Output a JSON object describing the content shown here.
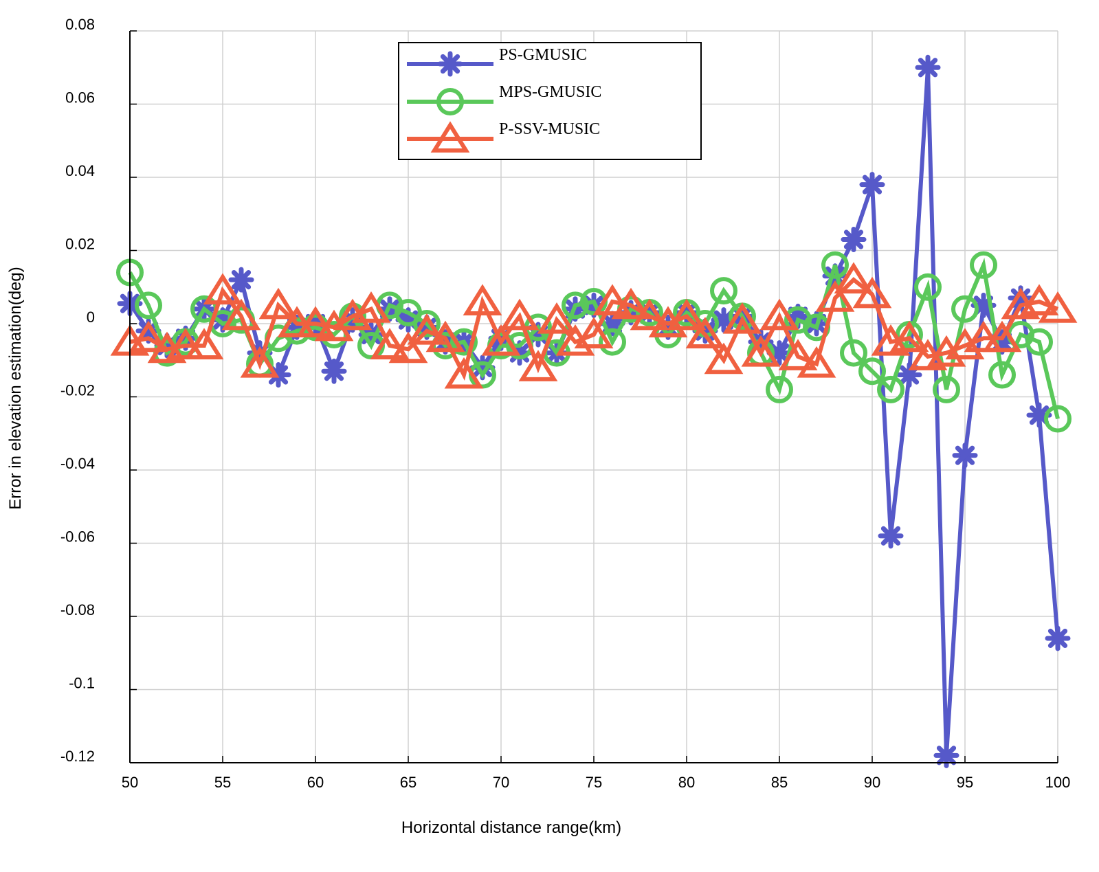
{
  "chart_data": {
    "type": "line",
    "title": "",
    "xlabel": "Horizontal distance range(km)",
    "ylabel": "Error in elevation estimation(deg)",
    "xlim": [
      50,
      100
    ],
    "ylim": [
      -0.12,
      0.08
    ],
    "grid": true,
    "legend_position": "top-center",
    "x_ticks": [
      50,
      55,
      60,
      65,
      70,
      75,
      80,
      85,
      90,
      95,
      100
    ],
    "x_tick_labels": [
      "50",
      "55",
      "60",
      "65",
      "70",
      "75",
      "80",
      "85",
      "90",
      "95",
      "100"
    ],
    "y_ticks": [
      0.08,
      0.06,
      0.04,
      0.02,
      0,
      -0.02,
      -0.04,
      -0.06,
      -0.08,
      -0.1,
      -0.12
    ],
    "y_tick_labels": [
      "0.08",
      "0.06",
      "0.04",
      "0.02",
      "0",
      "-0.02",
      "-0.04",
      "-0.06",
      "-0.08",
      "-0.1",
      "-0.12"
    ],
    "x": [
      50,
      51,
      52,
      53,
      54,
      55,
      56,
      57,
      58,
      59,
      60,
      61,
      62,
      63,
      64,
      65,
      66,
      67,
      68,
      69,
      70,
      71,
      72,
      73,
      74,
      75,
      76,
      77,
      78,
      79,
      80,
      81,
      82,
      83,
      84,
      85,
      86,
      87,
      88,
      89,
      90,
      91,
      92,
      93,
      94,
      95,
      96,
      97,
      98,
      99,
      100
    ],
    "series": [
      {
        "name": "PS-GMUSIC",
        "color": "#5659c9",
        "marker": "asterisk",
        "values": [
          0.0055,
          -0.002,
          -0.006,
          -0.004,
          0.004,
          0.001,
          0.012,
          -0.008,
          -0.014,
          -0.001,
          0.0,
          -0.013,
          0.001,
          -0.003,
          0.004,
          0.001,
          -0.001,
          -0.005,
          -0.005,
          -0.012,
          -0.004,
          -0.008,
          -0.003,
          -0.008,
          0.004,
          0.005,
          0.0,
          0.003,
          0.003,
          -0.001,
          0.003,
          -0.002,
          0.001,
          0.002,
          -0.005,
          -0.008,
          0.002,
          0.0,
          0.013,
          0.023,
          0.038,
          -0.058,
          -0.014,
          0.07,
          -0.118,
          -0.036,
          0.005,
          -0.005,
          0.007,
          -0.025,
          -0.086
        ]
      },
      {
        "name": "MPS-GMUSIC",
        "color": "#5ac85a",
        "marker": "circle",
        "values": [
          0.014,
          0.005,
          -0.008,
          -0.005,
          0.004,
          0.0,
          0.001,
          -0.011,
          -0.004,
          -0.002,
          -0.001,
          -0.003,
          0.002,
          -0.006,
          0.005,
          0.003,
          0.0,
          -0.006,
          -0.005,
          -0.014,
          -0.006,
          -0.006,
          -0.001,
          -0.008,
          0.005,
          0.006,
          -0.005,
          0.004,
          0.003,
          -0.003,
          0.003,
          0.0,
          0.009,
          0.002,
          -0.008,
          -0.018,
          0.001,
          -0.001,
          0.016,
          -0.008,
          -0.013,
          -0.018,
          -0.003,
          0.01,
          -0.018,
          0.004,
          0.016,
          -0.014,
          -0.003,
          -0.005,
          -0.026
        ]
      },
      {
        "name": "P-SSV-MUSIC",
        "color": "#f06040",
        "marker": "triangle",
        "values": [
          -0.005,
          -0.004,
          -0.007,
          -0.006,
          -0.006,
          0.009,
          0.002,
          -0.011,
          0.005,
          0.0,
          0.0,
          -0.001,
          0.002,
          0.004,
          -0.006,
          -0.007,
          -0.002,
          -0.004,
          -0.014,
          0.006,
          -0.005,
          0.002,
          -0.012,
          0.001,
          -0.005,
          -0.003,
          0.006,
          0.005,
          0.002,
          0.0,
          0.002,
          -0.003,
          -0.01,
          0.001,
          -0.008,
          0.002,
          -0.009,
          -0.011,
          0.007,
          0.012,
          0.008,
          -0.005,
          -0.004,
          -0.009,
          -0.008,
          -0.006,
          -0.004,
          -0.004,
          0.005,
          0.006,
          0.004
        ]
      }
    ]
  },
  "colors": {
    "grid": "#d0d0d0",
    "axis": "#000000",
    "background": "#ffffff"
  }
}
